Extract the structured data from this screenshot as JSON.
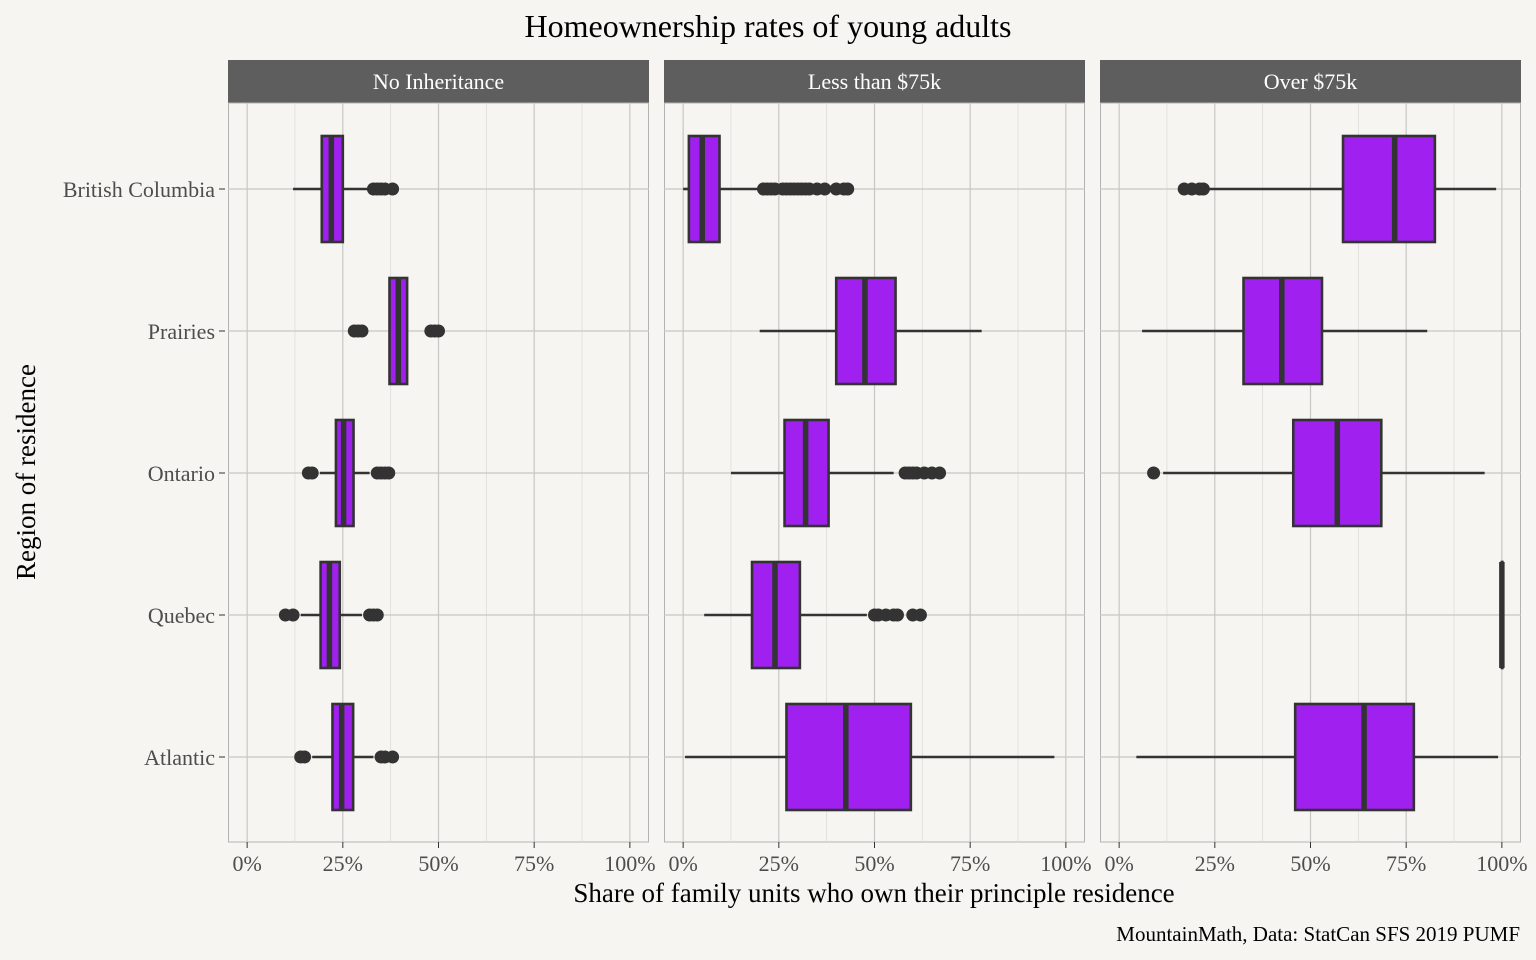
{
  "chart_data": {
    "type": "boxplot",
    "title": "Homeownership rates of young adults",
    "xlabel": "Share of family units who own their principle residence",
    "ylabel": "Region of residence",
    "caption": "MountainMath, Data: StatCan SFS 2019 PUMF",
    "x_ticks": [
      0,
      0.25,
      0.5,
      0.75,
      1.0
    ],
    "x_tick_labels": [
      "0%",
      "25%",
      "50%",
      "75%",
      "100%"
    ],
    "xlim": [
      -0.05,
      1.05
    ],
    "categories": [
      "British Columbia",
      "Prairies",
      "Ontario",
      "Quebec",
      "Atlantic"
    ],
    "fill_color": "#a020f0",
    "line_color": "#333333",
    "panel_header_color": "#5e5e5e",
    "grid": true,
    "panels": [
      {
        "label": "No Inheritance",
        "boxes": [
          {
            "category": "British Columbia",
            "whisker_low": 0.12,
            "q1": 0.195,
            "median": 0.22,
            "q3": 0.25,
            "whisker_high": 0.32,
            "outliers": [
              0.33,
              0.34,
              0.35,
              0.36,
              0.38
            ]
          },
          {
            "category": "Prairies",
            "whisker_low": 0.37,
            "q1": 0.372,
            "median": 0.395,
            "q3": 0.418,
            "whisker_high": 0.42,
            "outliers": [
              0.28,
              0.29,
              0.3,
              0.48,
              0.49,
              0.5
            ]
          },
          {
            "category": "Ontario",
            "whisker_low": 0.19,
            "q1": 0.232,
            "median": 0.252,
            "q3": 0.278,
            "whisker_high": 0.32,
            "outliers": [
              0.16,
              0.17,
              0.34,
              0.35,
              0.36,
              0.37
            ]
          },
          {
            "category": "Quebec",
            "whisker_low": 0.14,
            "q1": 0.192,
            "median": 0.215,
            "q3": 0.242,
            "whisker_high": 0.3,
            "outliers": [
              0.1,
              0.12,
              0.32,
              0.33,
              0.34
            ]
          },
          {
            "category": "Atlantic",
            "whisker_low": 0.17,
            "q1": 0.223,
            "median": 0.247,
            "q3": 0.277,
            "whisker_high": 0.33,
            "outliers": [
              0.14,
              0.15,
              0.35,
              0.36,
              0.38
            ]
          }
        ]
      },
      {
        "label": "Less than $75k",
        "boxes": [
          {
            "category": "British Columbia",
            "whisker_low": 0.0,
            "q1": 0.015,
            "median": 0.05,
            "q3": 0.095,
            "whisker_high": 0.2,
            "outliers": [
              0.21,
              0.22,
              0.23,
              0.24,
              0.26,
              0.27,
              0.28,
              0.29,
              0.3,
              0.31,
              0.32,
              0.33,
              0.35,
              0.37,
              0.4,
              0.42,
              0.43
            ]
          },
          {
            "category": "Prairies",
            "whisker_low": 0.2,
            "q1": 0.4,
            "median": 0.475,
            "q3": 0.555,
            "whisker_high": 0.78,
            "outliers": []
          },
          {
            "category": "Ontario",
            "whisker_low": 0.125,
            "q1": 0.265,
            "median": 0.32,
            "q3": 0.38,
            "whisker_high": 0.55,
            "outliers": [
              0.58,
              0.59,
              0.6,
              0.61,
              0.63,
              0.65,
              0.67
            ]
          },
          {
            "category": "Quebec",
            "whisker_low": 0.055,
            "q1": 0.18,
            "median": 0.24,
            "q3": 0.305,
            "whisker_high": 0.48,
            "outliers": [
              0.5,
              0.51,
              0.53,
              0.55,
              0.56,
              0.6,
              0.62
            ]
          },
          {
            "category": "Atlantic",
            "whisker_low": 0.005,
            "q1": 0.27,
            "median": 0.425,
            "q3": 0.595,
            "whisker_high": 0.97,
            "outliers": []
          }
        ]
      },
      {
        "label": "Over $75k",
        "boxes": [
          {
            "category": "British Columbia",
            "whisker_low": 0.235,
            "q1": 0.585,
            "median": 0.72,
            "q3": 0.825,
            "whisker_high": 0.985,
            "outliers": [
              0.17,
              0.19,
              0.21,
              0.22
            ]
          },
          {
            "category": "Prairies",
            "whisker_low": 0.06,
            "q1": 0.325,
            "median": 0.425,
            "q3": 0.53,
            "whisker_high": 0.805,
            "outliers": []
          },
          {
            "category": "Ontario",
            "whisker_low": 0.115,
            "q1": 0.455,
            "median": 0.57,
            "q3": 0.685,
            "whisker_high": 0.955,
            "outliers": [
              0.09
            ]
          },
          {
            "category": "Quebec",
            "whisker_low": 1.0,
            "q1": 1.0,
            "median": 1.0,
            "q3": 1.0,
            "whisker_high": 1.0,
            "outliers": []
          },
          {
            "category": "Atlantic",
            "whisker_low": 0.045,
            "q1": 0.46,
            "median": 0.64,
            "q3": 0.77,
            "whisker_high": 0.99,
            "outliers": []
          }
        ]
      }
    ]
  }
}
